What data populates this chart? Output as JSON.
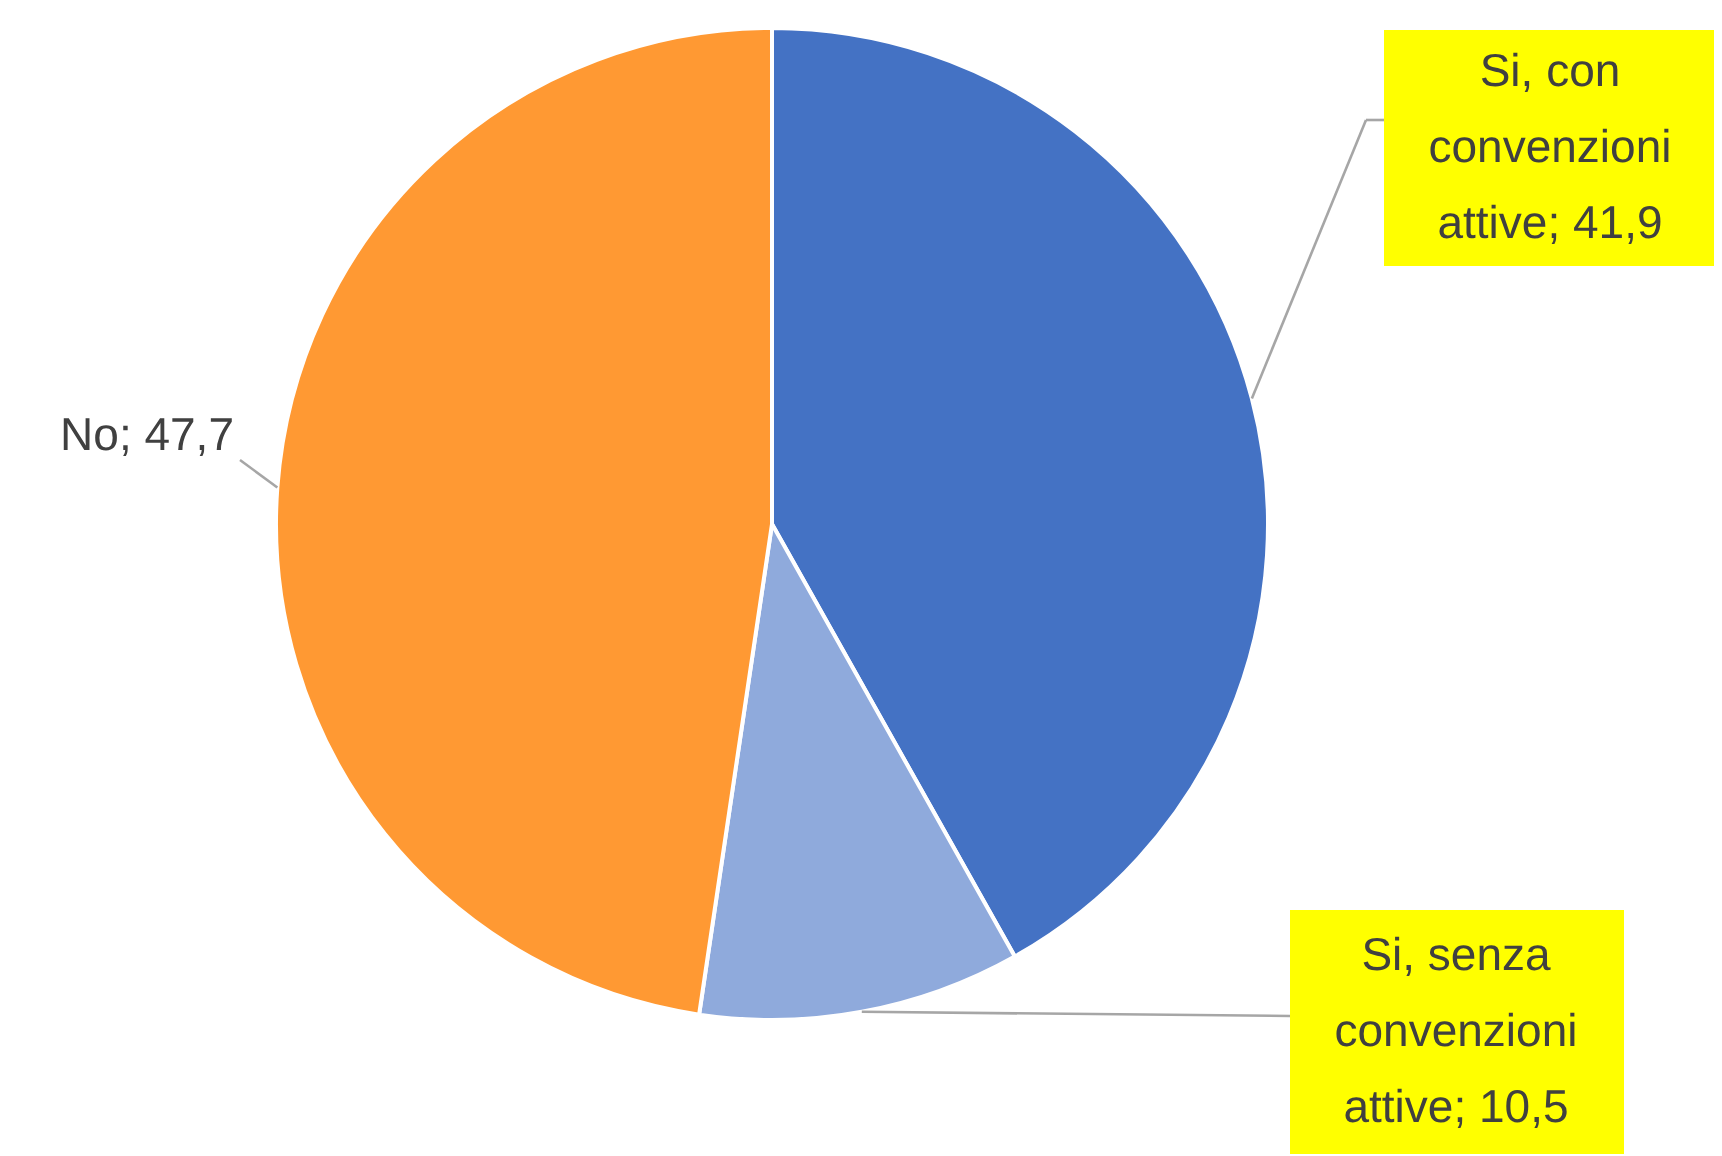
{
  "chart_data": {
    "type": "pie",
    "categories": [
      "Si, con convenzioni attive",
      "Si, senza convenzioni attive",
      "No"
    ],
    "values": [
      41.9,
      10.5,
      47.7
    ],
    "value_labels": [
      "41,9",
      "10,5",
      "47,7"
    ],
    "colors": [
      "#4472c4",
      "#8faadc",
      "#ff9933"
    ]
  }
}
